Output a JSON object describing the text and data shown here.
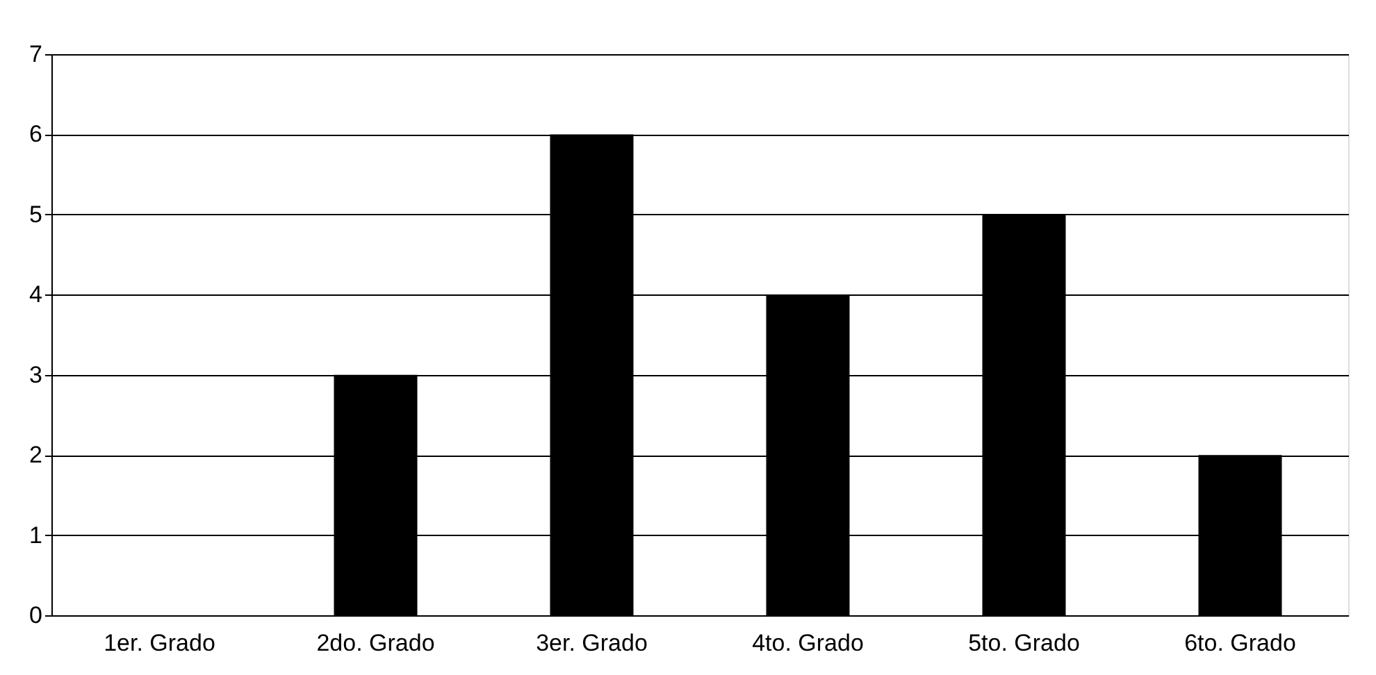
{
  "chart_data": {
    "type": "bar",
    "categories": [
      "1er. Grado",
      "2do. Grado",
      "3er. Grado",
      "4to. Grado",
      "5to. Grado",
      "6to. Grado"
    ],
    "values": [
      0,
      3,
      6,
      4,
      5,
      2
    ],
    "color": "#000000",
    "ylim": [
      0,
      7
    ],
    "yticks": [
      0,
      1,
      2,
      3,
      4,
      5,
      6,
      7
    ],
    "grid": "y"
  }
}
